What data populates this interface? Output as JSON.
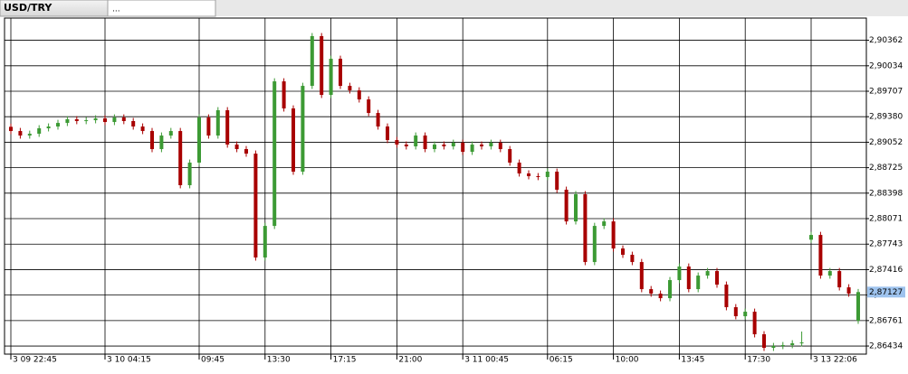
{
  "chart_data": {
    "type": "candlestick",
    "tabs": [
      "USD/TRY",
      "..."
    ],
    "categories": [
      "3 09 22:45",
      null,
      null,
      null,
      null,
      null,
      null,
      null,
      null,
      null,
      "3 10 04:15",
      null,
      null,
      null,
      null,
      null,
      null,
      null,
      null,
      null,
      "09:45",
      null,
      null,
      null,
      null,
      null,
      null,
      "13:30",
      null,
      null,
      null,
      null,
      null,
      null,
      "17:15",
      null,
      null,
      null,
      null,
      null,
      null,
      "21:00",
      null,
      null,
      null,
      null,
      null,
      null,
      "3 11 00:45",
      null,
      null,
      null,
      null,
      null,
      null,
      null,
      null,
      "06:15",
      null,
      null,
      null,
      null,
      null,
      null,
      "10:00",
      null,
      null,
      null,
      null,
      null,
      null,
      "13:45",
      null,
      null,
      null,
      null,
      null,
      null,
      "17:30",
      null,
      null,
      null,
      null,
      null,
      null,
      "3 13 22:06",
      null,
      null,
      null,
      null,
      null
    ],
    "open": [
      2.8925,
      2.89196,
      2.89138,
      2.89161,
      2.89231,
      2.89254,
      2.893,
      2.89347,
      2.89324,
      2.89335,
      2.89358,
      2.89312,
      2.8937,
      2.89324,
      2.89254,
      2.89196,
      2.88964,
      2.89138,
      2.89196,
      2.885,
      2.8879,
      2.8937,
      2.89138,
      2.89463,
      2.89022,
      2.88964,
      2.88906,
      2.87571,
      2.87977,
      2.89834,
      2.89486,
      2.88674,
      2.89776,
      2.90415,
      2.8966,
      2.90124,
      2.89776,
      2.89718,
      2.89602,
      2.89428,
      2.89254,
      2.8908,
      2.89022,
      2.88999,
      2.89138,
      2.88964,
      2.89022,
      2.88999,
      2.89045,
      2.88929,
      2.89022,
      2.88999,
      2.89045,
      2.88964,
      2.8879,
      2.88651,
      2.88616,
      2.88605,
      2.88674,
      2.88442,
      2.88035,
      2.88384,
      2.87513,
      2.87977,
      2.88035,
      2.87687,
      2.87606,
      2.87513,
      2.87165,
      2.87107,
      2.87049,
      2.87281,
      2.87455,
      2.87165,
      2.87339,
      2.87397,
      2.87223,
      2.86933,
      2.86817,
      2.86875,
      2.86585,
      2.86411,
      2.86434,
      2.86446,
      2.86469,
      2.878,
      2.87861,
      2.87339,
      2.87397,
      2.87188,
      2.86759
    ],
    "high": [
      2.8929,
      2.89236,
      2.89201,
      2.89271,
      2.89294,
      2.8934,
      2.89387,
      2.89387,
      2.89375,
      2.89398,
      2.89398,
      2.8941,
      2.8941,
      2.89364,
      2.89294,
      2.89236,
      2.89178,
      2.89236,
      2.89236,
      2.8883,
      2.8941,
      2.8941,
      2.89503,
      2.89503,
      2.89062,
      2.89004,
      2.88946,
      2.88017,
      2.89874,
      2.89874,
      2.89526,
      2.89816,
      2.90455,
      2.90455,
      2.90164,
      2.90164,
      2.89816,
      2.89758,
      2.89642,
      2.89468,
      2.89294,
      2.8912,
      2.89062,
      2.89178,
      2.89178,
      2.89062,
      2.89062,
      2.89085,
      2.89085,
      2.89062,
      2.89062,
      2.89085,
      2.89085,
      2.89004,
      2.8883,
      2.88691,
      2.88656,
      2.88714,
      2.88714,
      2.88482,
      2.88424,
      2.88424,
      2.88017,
      2.88075,
      2.88075,
      2.87727,
      2.87646,
      2.87553,
      2.87205,
      2.87147,
      2.87321,
      2.87495,
      2.87495,
      2.87379,
      2.87437,
      2.87437,
      2.87263,
      2.86973,
      2.86915,
      2.86915,
      2.86625,
      2.86474,
      2.86486,
      2.86509,
      2.8662,
      2.87901,
      2.87901,
      2.87437,
      2.87437,
      2.87228,
      2.87167
    ],
    "low": [
      2.89156,
      2.89098,
      2.89098,
      2.89121,
      2.89191,
      2.89214,
      2.8926,
      2.89284,
      2.89284,
      2.89295,
      2.89272,
      2.89272,
      2.89284,
      2.89214,
      2.89156,
      2.88924,
      2.88924,
      2.89098,
      2.8846,
      2.8846,
      2.8875,
      2.89098,
      2.89098,
      2.88982,
      2.88924,
      2.88866,
      2.87531,
      2.87531,
      2.87937,
      2.89446,
      2.88634,
      2.88634,
      2.89736,
      2.8962,
      2.8962,
      2.89736,
      2.89678,
      2.89562,
      2.89388,
      2.89214,
      2.8904,
      2.88982,
      2.88959,
      2.88959,
      2.88924,
      2.88924,
      2.88959,
      2.88959,
      2.88889,
      2.88889,
      2.88959,
      2.88959,
      2.88924,
      2.8875,
      2.88611,
      2.88576,
      2.88565,
      2.88565,
      2.88402,
      2.87995,
      2.87995,
      2.87473,
      2.87473,
      2.87937,
      2.87647,
      2.87566,
      2.87473,
      2.87125,
      2.87067,
      2.87009,
      2.87009,
      2.87241,
      2.87125,
      2.87125,
      2.87299,
      2.87183,
      2.86893,
      2.86777,
      2.86777,
      2.86545,
      2.86371,
      2.86371,
      2.86394,
      2.86406,
      2.86429,
      2.8776,
      2.87299,
      2.87299,
      2.87148,
      2.87067,
      2.86719
    ],
    "close": [
      2.89196,
      2.89138,
      2.89161,
      2.89231,
      2.89254,
      2.893,
      2.89347,
      2.89324,
      2.89335,
      2.89358,
      2.89312,
      2.8937,
      2.89324,
      2.89254,
      2.89196,
      2.88964,
      2.89138,
      2.89196,
      2.885,
      2.8879,
      2.8937,
      2.89138,
      2.89463,
      2.89022,
      2.88964,
      2.88906,
      2.87571,
      2.87977,
      2.89834,
      2.89486,
      2.88674,
      2.89776,
      2.90415,
      2.8966,
      2.90124,
      2.89776,
      2.89718,
      2.89602,
      2.89428,
      2.89254,
      2.8908,
      2.89022,
      2.88999,
      2.89138,
      2.88964,
      2.89022,
      2.88999,
      2.89045,
      2.88929,
      2.89022,
      2.88999,
      2.89045,
      2.88964,
      2.8879,
      2.88651,
      2.88616,
      2.88605,
      2.88674,
      2.88442,
      2.88035,
      2.88384,
      2.87513,
      2.87977,
      2.88035,
      2.87687,
      2.87606,
      2.87513,
      2.87165,
      2.87107,
      2.87049,
      2.87281,
      2.87455,
      2.87165,
      2.87339,
      2.87397,
      2.87223,
      2.86933,
      2.86817,
      2.86875,
      2.86585,
      2.86411,
      2.86434,
      2.86446,
      2.86469,
      2.8648,
      2.87861,
      2.87339,
      2.87397,
      2.87188,
      2.87107,
      2.87127
    ],
    "up_color": "#3c9a34",
    "down_color": "#a80000",
    "ylim": [
      2.8633,
      2.90647
    ],
    "yticks": [
      {
        "value": 2.86434,
        "label": "2,86434"
      },
      {
        "value": 2.86761,
        "label": "2,86761"
      },
      {
        "value": 2.87089,
        "label": "2,87089"
      },
      {
        "value": 2.87416,
        "label": "2,87416"
      },
      {
        "value": 2.87743,
        "label": "2,87743"
      },
      {
        "value": 2.88071,
        "label": "2,88071"
      },
      {
        "value": 2.88398,
        "label": "2,88398"
      },
      {
        "value": 2.88725,
        "label": "2,88725"
      },
      {
        "value": 2.89052,
        "label": "2,89052"
      },
      {
        "value": 2.8938,
        "label": "2,89380"
      },
      {
        "value": 2.89707,
        "label": "2,89707"
      },
      {
        "value": 2.90034,
        "label": "2,90034"
      },
      {
        "value": 2.90362,
        "label": "2,90362"
      }
    ],
    "last_price": {
      "value": 2.87127,
      "label": "2,87127"
    },
    "grid": true
  }
}
